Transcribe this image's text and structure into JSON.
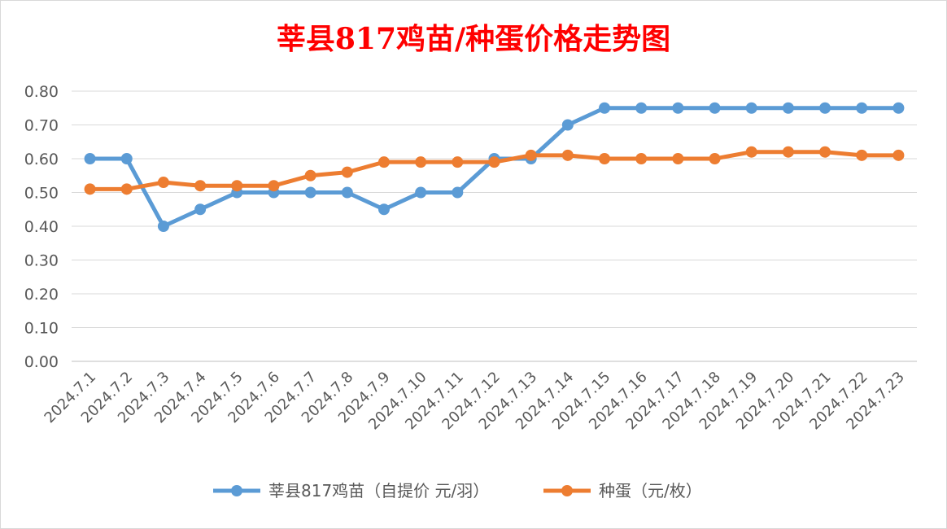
{
  "chart_data": {
    "type": "line",
    "title": "莘县817鸡苗/种蛋价格走势图",
    "categories": [
      "2024.7.1",
      "2024.7.2",
      "2024.7.3",
      "2024.7.4",
      "2024.7.5",
      "2024.7.6",
      "2024.7.7",
      "2024.7.8",
      "2024.7.9",
      "2024.7.10",
      "2024.7.11",
      "2024.7.12",
      "2024.7.13",
      "2024.7.14",
      "2024.7.15",
      "2024.7.16",
      "2024.7.17",
      "2024.7.18",
      "2024.7.19",
      "2024.7.20",
      "2024.7.21",
      "2024.7.22",
      "2024.7.23"
    ],
    "yticks": [
      "0.00",
      "0.10",
      "0.20",
      "0.30",
      "0.40",
      "0.50",
      "0.60",
      "0.70",
      "0.80"
    ],
    "ylim": [
      0,
      0.8
    ],
    "grid": true,
    "legend_position": "bottom",
    "series": [
      {
        "name": "莘县817鸡苗（自提价 元/羽）",
        "color": "#5b9bd5",
        "values": [
          0.6,
          0.6,
          0.4,
          0.45,
          0.5,
          0.5,
          0.5,
          0.5,
          0.45,
          0.5,
          0.5,
          0.6,
          0.6,
          0.7,
          0.75,
          0.75,
          0.75,
          0.75,
          0.75,
          0.75,
          0.75,
          0.75,
          0.75
        ]
      },
      {
        "name": "种蛋（元/枚）",
        "color": "#ed7d31",
        "values": [
          0.51,
          0.51,
          0.53,
          0.52,
          0.52,
          0.52,
          0.55,
          0.56,
          0.59,
          0.59,
          0.59,
          0.59,
          0.61,
          0.61,
          0.6,
          0.6,
          0.6,
          0.6,
          0.62,
          0.62,
          0.62,
          0.61,
          0.61
        ]
      }
    ]
  }
}
